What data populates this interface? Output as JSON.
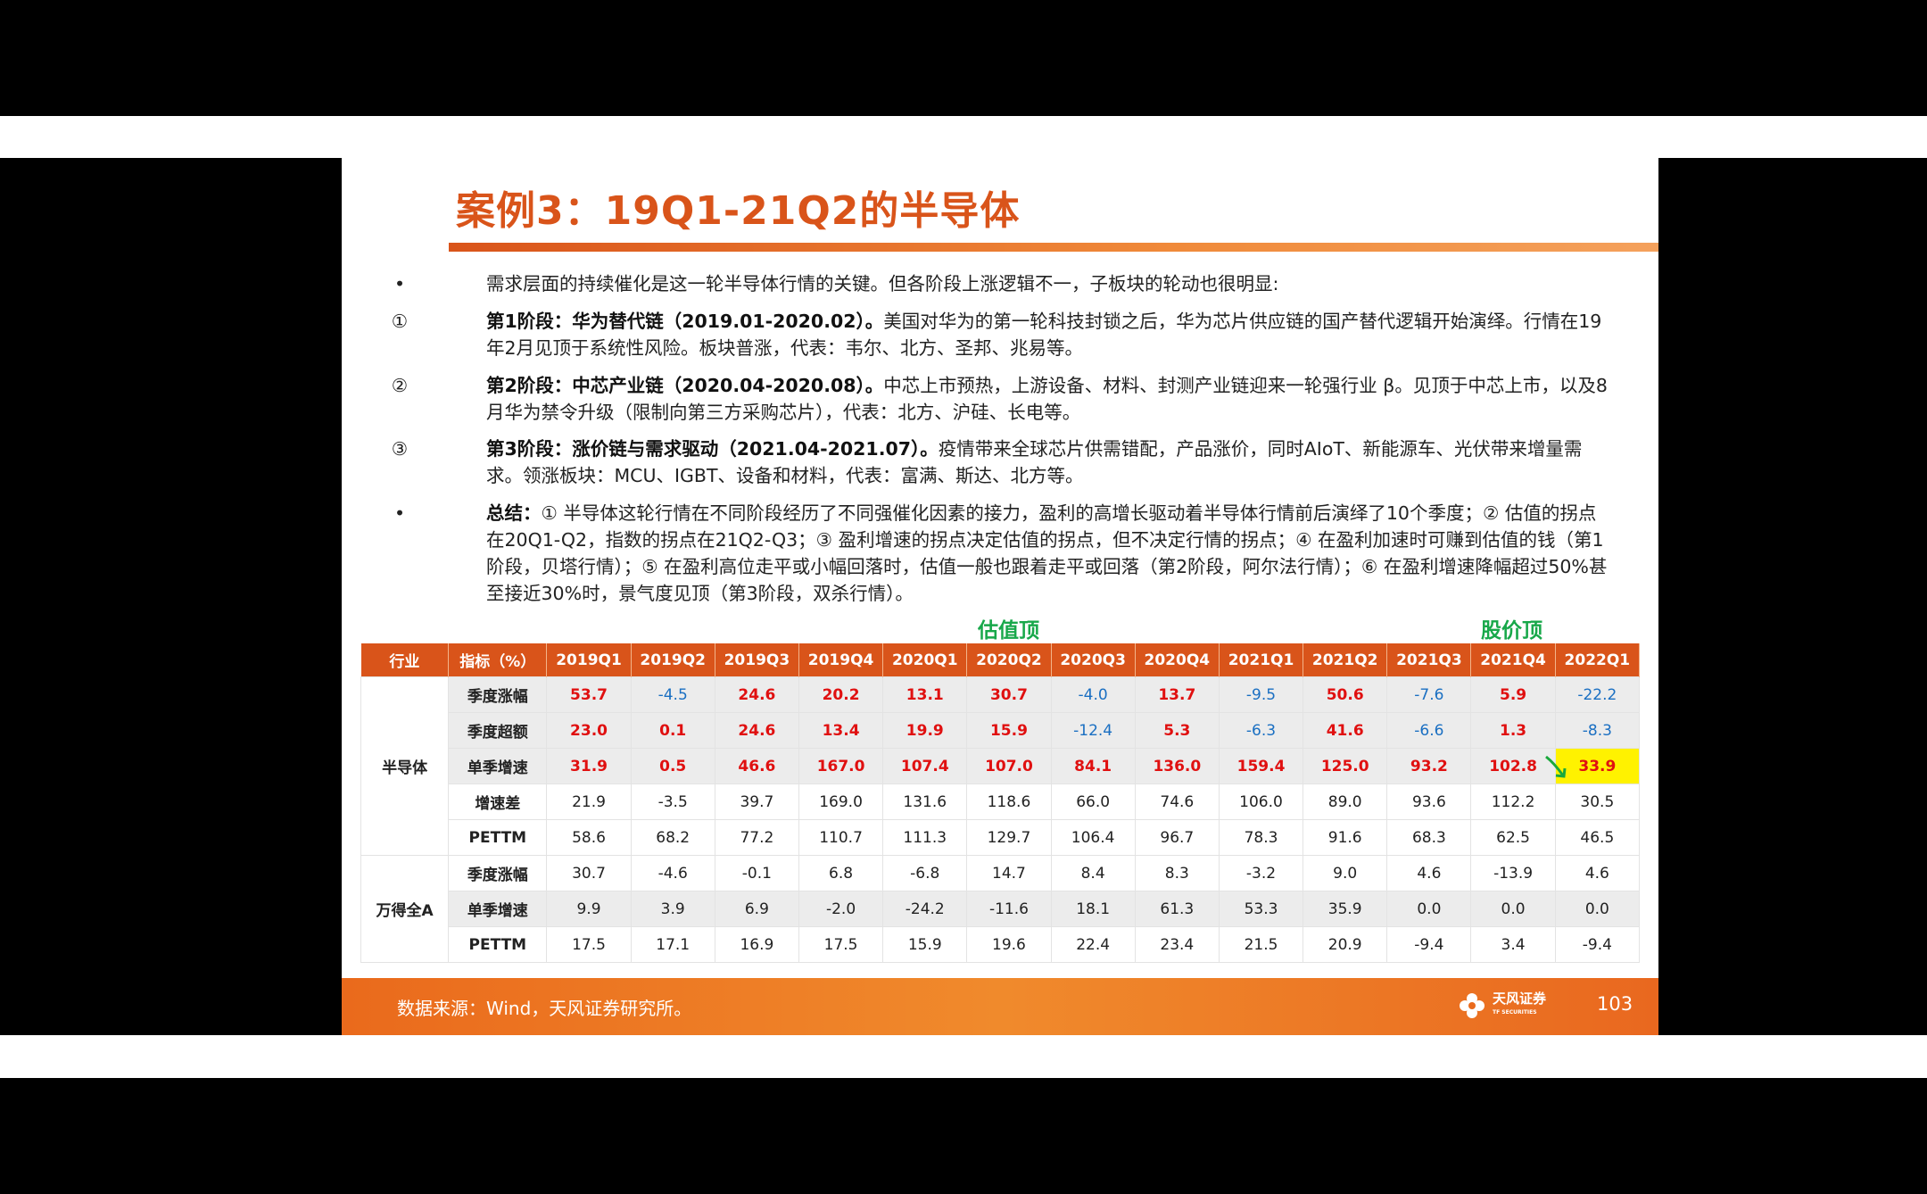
{
  "title": "案例3：19Q1-21Q2的半导体",
  "bullets": [
    {
      "mark": "•",
      "bold": "",
      "text": "需求层面的持续催化是这一轮半导体行情的关键。但各阶段上涨逻辑不一，子板块的轮动也很明显:"
    },
    {
      "mark": "①",
      "bold": "第1阶段：华为替代链（2019.01-2020.02）。",
      "text": "美国对华为的第一轮科技封锁之后，华为芯片供应链的国产替代逻辑开始演绎。行情在19年2月见顶于系统性风险。板块普涨，代表：韦尔、北方、圣邦、兆易等。"
    },
    {
      "mark": "②",
      "bold": "第2阶段：中芯产业链（2020.04-2020.08）。",
      "text": "中芯上市预热，上游设备、材料、封测产业链迎来一轮强行业 β。见顶于中芯上市，以及8月华为禁令升级（限制向第三方采购芯片），代表：北方、沪硅、长电等。"
    },
    {
      "mark": "③",
      "bold": "第3阶段：涨价链与需求驱动（2021.04-2021.07）。",
      "text": "疫情带来全球芯片供需错配，产品涨价，同时AIoT、新能源车、光伏带来增量需求。领涨板块：MCU、IGBT、设备和材料，代表：富满、斯达、北方等。"
    },
    {
      "mark": "•",
      "bold": "总结：",
      "text": "① 半导体这轮行情在不同阶段经历了不同强催化因素的接力，盈利的高增长驱动着半导体行情前后演绎了10个季度；② 估值的拐点在20Q1-Q2，指数的拐点在21Q2-Q3；③ 盈利增速的拐点决定估值的拐点，但不决定行情的拐点；④ 在盈利加速时可赚到估值的钱（第1阶段，贝塔行情）；⑤ 在盈利高位走平或小幅回落时，估值一般也跟着走平或回落（第2阶段，阿尔法行情）；⑥ 在盈利增速降幅超过50%甚至接近30%时，景气度见顶（第3阶段，双杀行情）。"
    }
  ],
  "highlights": {
    "valuation_top": "估值顶",
    "price_top": "股价顶"
  },
  "table": {
    "headers": [
      "行业",
      "指标（%）",
      "2019Q1",
      "2019Q2",
      "2019Q3",
      "2019Q4",
      "2020Q1",
      "2020Q2",
      "2020Q3",
      "2020Q4",
      "2021Q1",
      "2021Q2",
      "2021Q3",
      "2021Q4",
      "2022Q1"
    ],
    "groups": [
      {
        "name": "半导体",
        "rows": [
          {
            "label": "季度涨幅",
            "values": [
              "53.7",
              "-4.5",
              "24.6",
              "20.2",
              "13.1",
              "30.7",
              "-4.0",
              "13.7",
              "-9.5",
              "50.6",
              "-7.6",
              "5.9",
              "-22.2"
            ]
          },
          {
            "label": "季度超额",
            "values": [
              "23.0",
              "0.1",
              "24.6",
              "13.4",
              "19.9",
              "15.9",
              "-12.4",
              "5.3",
              "-6.3",
              "41.6",
              "-6.6",
              "1.3",
              "-8.3"
            ]
          },
          {
            "label": "单季增速",
            "values": [
              "31.9",
              "0.5",
              "46.6",
              "167.0",
              "107.4",
              "107.0",
              "84.1",
              "136.0",
              "159.4",
              "125.0",
              "93.2",
              "102.8",
              "33.9"
            ]
          },
          {
            "label": "增速差",
            "values": [
              "21.9",
              "-3.5",
              "39.7",
              "169.0",
              "131.6",
              "118.6",
              "66.0",
              "74.6",
              "106.0",
              "89.0",
              "93.6",
              "112.2",
              "30.5"
            ]
          },
          {
            "label": "PETTM",
            "values": [
              "58.6",
              "68.2",
              "77.2",
              "110.7",
              "111.3",
              "129.7",
              "106.4",
              "96.7",
              "78.3",
              "91.6",
              "68.3",
              "62.5",
              "46.5"
            ]
          }
        ]
      },
      {
        "name": "万得全A",
        "rows": [
          {
            "label": "季度涨幅",
            "values": [
              "30.7",
              "-4.6",
              "-0.1",
              "6.8",
              "-6.8",
              "14.7",
              "8.4",
              "8.3",
              "-3.2",
              "9.0",
              "4.6",
              "-13.9",
              "4.6"
            ]
          },
          {
            "label": "单季增速",
            "values": [
              "9.9",
              "3.9",
              "6.9",
              "-2.0",
              "-24.2",
              "-11.6",
              "18.1",
              "61.3",
              "53.3",
              "35.9",
              "0.0",
              "0.0",
              "0.0"
            ]
          },
          {
            "label": "PETTM",
            "values": [
              "17.5",
              "17.1",
              "16.9",
              "17.5",
              "15.9",
              "19.6",
              "22.4",
              "23.4",
              "21.5",
              "20.9",
              "-9.4",
              "3.4",
              "-9.4"
            ]
          }
        ]
      }
    ]
  },
  "footer": {
    "source": "数据来源：Wind，天风证券研究所。",
    "logo": "天风证券",
    "logo_sub": "TF SECURITIES",
    "page": "103"
  },
  "colors": {
    "accent": "#d9541a",
    "positive": "#e01010",
    "negative": "#1a6fc2",
    "highlight": "#fff200",
    "signal": "#18a84a"
  }
}
